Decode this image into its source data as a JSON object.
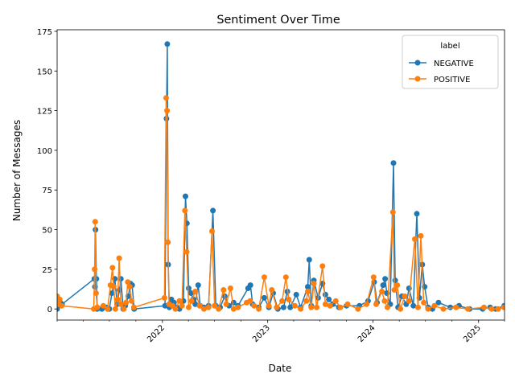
{
  "chart_data": {
    "type": "line",
    "title": "Sentiment Over Time",
    "xlabel": "Date",
    "ylabel": "Number of Messages",
    "xlim": [
      "2021-01-01",
      "2025-04-01"
    ],
    "ylim": [
      -7,
      176
    ],
    "x_ticks": [
      {
        "date": "2022-01-01",
        "label": "2022"
      },
      {
        "date": "2023-01-01",
        "label": "2023"
      },
      {
        "date": "2024-01-01",
        "label": "2024"
      },
      {
        "date": "2025-01-01",
        "label": "2025"
      }
    ],
    "x_minor_ticks": [
      "2021-01-01",
      "2021-04-01",
      "2021-07-01",
      "2021-10-01",
      "2022-04-01",
      "2022-07-01",
      "2022-10-01",
      "2023-04-01",
      "2023-07-01",
      "2023-10-01",
      "2024-04-01",
      "2024-07-01",
      "2024-10-01",
      "2025-04-01"
    ],
    "y_ticks": [
      0,
      25,
      50,
      75,
      100,
      125,
      150,
      175
    ],
    "y_tick_labels": [
      "0",
      "25",
      "50",
      "75",
      "100",
      "125",
      "150",
      "175"
    ],
    "grid": false,
    "legend": {
      "title": "label",
      "position": "top-right"
    },
    "series": [
      {
        "name": "NEGATIVE",
        "color": "#1f77b4",
        "points": [
          [
            "2021-01-01",
            0
          ],
          [
            "2021-01-06",
            2
          ],
          [
            "2021-01-12",
            4
          ],
          [
            "2021-01-18",
            3
          ],
          [
            "2021-05-10",
            19
          ],
          [
            "2021-05-12",
            14
          ],
          [
            "2021-05-14",
            50
          ],
          [
            "2021-05-17",
            19
          ],
          [
            "2021-05-20",
            0
          ],
          [
            "2021-06-05",
            0
          ],
          [
            "2021-06-20",
            1
          ],
          [
            "2021-07-01",
            0
          ],
          [
            "2021-07-10",
            10
          ],
          [
            "2021-07-20",
            19
          ],
          [
            "2021-07-28",
            3
          ],
          [
            "2021-08-05",
            12
          ],
          [
            "2021-08-10",
            19
          ],
          [
            "2021-08-18",
            0
          ],
          [
            "2021-08-25",
            2
          ],
          [
            "2021-09-05",
            8
          ],
          [
            "2021-09-12",
            16
          ],
          [
            "2021-09-18",
            15
          ],
          [
            "2021-09-25",
            0
          ],
          [
            "2022-01-10",
            2
          ],
          [
            "2022-01-15",
            120
          ],
          [
            "2022-01-18",
            167
          ],
          [
            "2022-01-21",
            28
          ],
          [
            "2022-01-25",
            1
          ],
          [
            "2022-02-01",
            6
          ],
          [
            "2022-02-10",
            4
          ],
          [
            "2022-02-20",
            1
          ],
          [
            "2022-03-01",
            0
          ],
          [
            "2022-03-15",
            5
          ],
          [
            "2022-03-22",
            71
          ],
          [
            "2022-03-27",
            54
          ],
          [
            "2022-04-02",
            13
          ],
          [
            "2022-04-10",
            10
          ],
          [
            "2022-04-18",
            6
          ],
          [
            "2022-04-25",
            3
          ],
          [
            "2022-05-05",
            15
          ],
          [
            "2022-05-12",
            2
          ],
          [
            "2022-05-25",
            1
          ],
          [
            "2022-06-10",
            2
          ],
          [
            "2022-06-25",
            62
          ],
          [
            "2022-07-05",
            2
          ],
          [
            "2022-07-20",
            1
          ],
          [
            "2022-08-05",
            8
          ],
          [
            "2022-08-20",
            2
          ],
          [
            "2022-09-05",
            4
          ],
          [
            "2022-09-20",
            2
          ],
          [
            "2022-10-25",
            13
          ],
          [
            "2022-11-02",
            15
          ],
          [
            "2022-11-10",
            3
          ],
          [
            "2022-12-01",
            1
          ],
          [
            "2022-12-20",
            7
          ],
          [
            "2023-01-05",
            1
          ],
          [
            "2023-01-20",
            10
          ],
          [
            "2023-02-05",
            0
          ],
          [
            "2023-02-25",
            1
          ],
          [
            "2023-03-10",
            11
          ],
          [
            "2023-03-20",
            1
          ],
          [
            "2023-04-10",
            9
          ],
          [
            "2023-04-25",
            1
          ],
          [
            "2023-05-20",
            14
          ],
          [
            "2023-05-25",
            31
          ],
          [
            "2023-06-01",
            2
          ],
          [
            "2023-06-10",
            18
          ],
          [
            "2023-06-25",
            7
          ],
          [
            "2023-07-10",
            16
          ],
          [
            "2023-07-20",
            9
          ],
          [
            "2023-08-01",
            6
          ],
          [
            "2023-08-15",
            3
          ],
          [
            "2023-09-05",
            1
          ],
          [
            "2023-10-01",
            2
          ],
          [
            "2023-11-15",
            2
          ],
          [
            "2023-12-15",
            5
          ],
          [
            "2024-01-05",
            17
          ],
          [
            "2024-01-15",
            4
          ],
          [
            "2024-02-05",
            15
          ],
          [
            "2024-02-12",
            19
          ],
          [
            "2024-02-18",
            10
          ],
          [
            "2024-03-01",
            3
          ],
          [
            "2024-03-12",
            92
          ],
          [
            "2024-03-18",
            18
          ],
          [
            "2024-03-28",
            1
          ],
          [
            "2024-04-10",
            8
          ],
          [
            "2024-04-25",
            3
          ],
          [
            "2024-05-05",
            13
          ],
          [
            "2024-05-20",
            2
          ],
          [
            "2024-06-01",
            60
          ],
          [
            "2024-06-10",
            7
          ],
          [
            "2024-06-20",
            28
          ],
          [
            "2024-06-28",
            14
          ],
          [
            "2024-07-10",
            1
          ],
          [
            "2024-07-25",
            0
          ],
          [
            "2024-08-15",
            4
          ],
          [
            "2024-09-25",
            1
          ],
          [
            "2024-10-25",
            2
          ],
          [
            "2024-12-01",
            0
          ],
          [
            "2025-01-15",
            0
          ],
          [
            "2025-02-10",
            1
          ],
          [
            "2025-03-01",
            0
          ],
          [
            "2025-03-31",
            2
          ]
        ]
      },
      {
        "name": "POSITIVE",
        "color": "#ff7f0e",
        "points": [
          [
            "2021-01-01",
            8
          ],
          [
            "2021-01-05",
            3
          ],
          [
            "2021-01-10",
            6
          ],
          [
            "2021-01-16",
            2
          ],
          [
            "2021-05-08",
            0
          ],
          [
            "2021-05-11",
            25
          ],
          [
            "2021-05-13",
            55
          ],
          [
            "2021-05-16",
            10
          ],
          [
            "2021-05-20",
            1
          ],
          [
            "2021-06-10",
            2
          ],
          [
            "2021-06-25",
            0
          ],
          [
            "2021-07-05",
            15
          ],
          [
            "2021-07-12",
            26
          ],
          [
            "2021-07-16",
            14
          ],
          [
            "2021-07-22",
            0
          ],
          [
            "2021-07-30",
            6
          ],
          [
            "2021-08-04",
            32
          ],
          [
            "2021-08-10",
            3
          ],
          [
            "2021-08-20",
            0
          ],
          [
            "2021-08-28",
            4
          ],
          [
            "2021-09-03",
            17
          ],
          [
            "2021-09-10",
            14
          ],
          [
            "2021-09-16",
            5
          ],
          [
            "2021-09-24",
            1
          ],
          [
            "2022-01-08",
            7
          ],
          [
            "2022-01-14",
            133
          ],
          [
            "2022-01-17",
            125
          ],
          [
            "2022-01-20",
            42
          ],
          [
            "2022-01-24",
            3
          ],
          [
            "2022-02-05",
            2
          ],
          [
            "2022-02-15",
            0
          ],
          [
            "2022-03-01",
            5
          ],
          [
            "2022-03-10",
            2
          ],
          [
            "2022-03-20",
            62
          ],
          [
            "2022-03-26",
            36
          ],
          [
            "2022-04-02",
            1
          ],
          [
            "2022-04-12",
            5
          ],
          [
            "2022-04-25",
            11
          ],
          [
            "2022-05-10",
            2
          ],
          [
            "2022-05-25",
            0
          ],
          [
            "2022-06-10",
            1
          ],
          [
            "2022-06-22",
            49
          ],
          [
            "2022-07-01",
            2
          ],
          [
            "2022-07-15",
            0
          ],
          [
            "2022-08-01",
            12
          ],
          [
            "2022-08-10",
            3
          ],
          [
            "2022-08-25",
            13
          ],
          [
            "2022-09-05",
            0
          ],
          [
            "2022-09-20",
            1
          ],
          [
            "2022-10-20",
            4
          ],
          [
            "2022-11-01",
            5
          ],
          [
            "2022-11-15",
            2
          ],
          [
            "2022-12-01",
            0
          ],
          [
            "2022-12-20",
            20
          ],
          [
            "2023-01-05",
            2
          ],
          [
            "2023-01-15",
            12
          ],
          [
            "2023-02-01",
            1
          ],
          [
            "2023-02-20",
            5
          ],
          [
            "2023-03-05",
            20
          ],
          [
            "2023-03-15",
            6
          ],
          [
            "2023-04-05",
            2
          ],
          [
            "2023-04-25",
            0
          ],
          [
            "2023-05-15",
            5
          ],
          [
            "2023-05-20",
            11
          ],
          [
            "2023-06-01",
            1
          ],
          [
            "2023-06-10",
            16
          ],
          [
            "2023-06-20",
            1
          ],
          [
            "2023-07-10",
            27
          ],
          [
            "2023-07-20",
            3
          ],
          [
            "2023-08-05",
            2
          ],
          [
            "2023-08-25",
            5
          ],
          [
            "2023-09-10",
            1
          ],
          [
            "2023-10-05",
            3
          ],
          [
            "2023-11-10",
            0
          ],
          [
            "2023-12-10",
            3
          ],
          [
            "2024-01-03",
            20
          ],
          [
            "2024-01-12",
            3
          ],
          [
            "2024-02-01",
            11
          ],
          [
            "2024-02-10",
            5
          ],
          [
            "2024-02-20",
            1
          ],
          [
            "2024-03-10",
            61
          ],
          [
            "2024-03-15",
            12
          ],
          [
            "2024-03-25",
            15
          ],
          [
            "2024-04-05",
            0
          ],
          [
            "2024-04-20",
            8
          ],
          [
            "2024-05-05",
            5
          ],
          [
            "2024-05-25",
            44
          ],
          [
            "2024-06-05",
            1
          ],
          [
            "2024-06-15",
            46
          ],
          [
            "2024-06-25",
            4
          ],
          [
            "2024-07-10",
            0
          ],
          [
            "2024-08-01",
            2
          ],
          [
            "2024-09-01",
            0
          ],
          [
            "2024-10-15",
            1
          ],
          [
            "2024-11-25",
            0
          ],
          [
            "2025-01-20",
            1
          ],
          [
            "2025-02-15",
            0
          ],
          [
            "2025-03-10",
            0
          ],
          [
            "2025-03-30",
            1
          ]
        ]
      }
    ]
  }
}
